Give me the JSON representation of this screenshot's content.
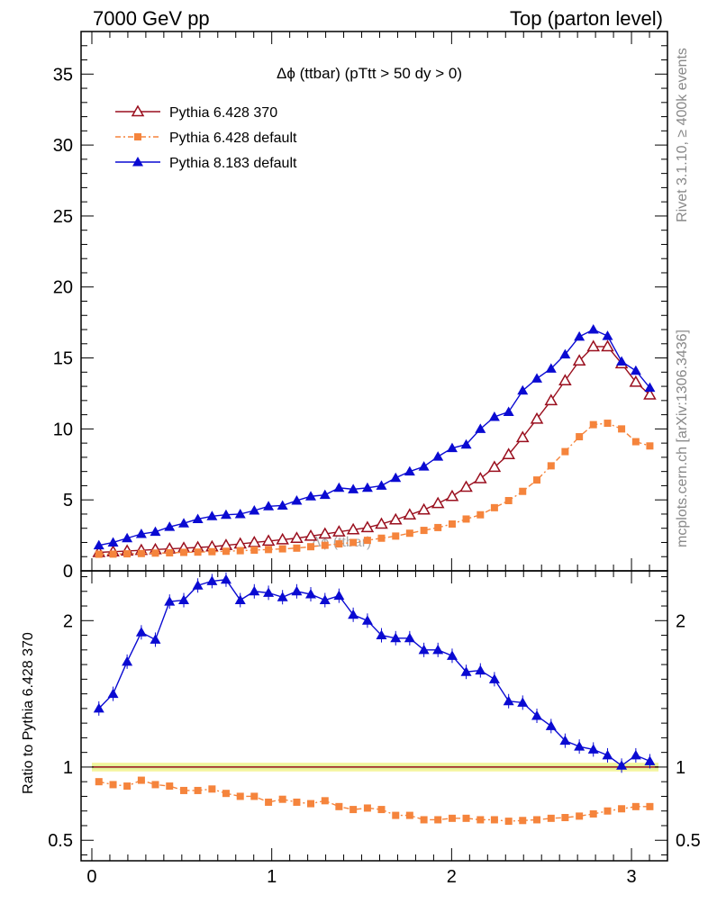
{
  "header": {
    "left": "7000 GeV pp",
    "right": "Top (parton level)"
  },
  "side_labels": {
    "rivet": "Rivet 3.1.10, ≥ 400k events",
    "mcplots": "mcplots.cern.ch [arXiv:1306.3436]"
  },
  "colors": {
    "pythia6_370": "#9a0f1e",
    "pythia6_default": "#f5843c",
    "pythia8_default": "#0a0ad2",
    "band_green": "#dff59a",
    "band_yellow": "#f5f5a0"
  },
  "chart_data": [
    {
      "type": "line",
      "title": "Δϕ (ttbar) (pTtt > 50 dy > 0)",
      "watermark": "Δϕ (ttbar)",
      "xlim": [
        -0.06,
        3.2
      ],
      "ylim": [
        0,
        38
      ],
      "yticks": [
        0,
        5,
        10,
        15,
        20,
        25,
        30,
        35
      ],
      "ytick_labels": [
        "0",
        "5",
        "10",
        "15",
        "20",
        "25",
        "30",
        "35"
      ],
      "legend_position": "top-left",
      "x": [
        0.039,
        0.118,
        0.196,
        0.275,
        0.353,
        0.432,
        0.511,
        0.589,
        0.668,
        0.746,
        0.825,
        0.903,
        0.982,
        1.06,
        1.139,
        1.217,
        1.296,
        1.374,
        1.453,
        1.532,
        1.61,
        1.689,
        1.767,
        1.846,
        1.924,
        2.003,
        2.081,
        2.16,
        2.238,
        2.317,
        2.395,
        2.474,
        2.553,
        2.631,
        2.71,
        2.788,
        2.867,
        2.945,
        3.024,
        3.102
      ],
      "series": [
        {
          "name": "Pythia 6.428 370",
          "marker": "open-triangle",
          "line": "solid",
          "values": [
            1.3,
            1.35,
            1.4,
            1.45,
            1.5,
            1.55,
            1.6,
            1.65,
            1.7,
            1.8,
            1.9,
            2.0,
            2.1,
            2.2,
            2.3,
            2.45,
            2.6,
            2.75,
            2.9,
            3.05,
            3.3,
            3.6,
            3.95,
            4.3,
            4.75,
            5.25,
            5.9,
            6.5,
            7.3,
            8.2,
            9.4,
            10.7,
            12.0,
            13.4,
            14.8,
            15.8,
            15.8,
            14.6,
            13.3,
            12.4
          ]
        },
        {
          "name": "Pythia 6.428 default",
          "marker": "filled-square",
          "line": "dash-dot",
          "values": [
            1.17,
            1.18,
            1.2,
            1.22,
            1.25,
            1.27,
            1.3,
            1.32,
            1.35,
            1.38,
            1.42,
            1.46,
            1.5,
            1.55,
            1.6,
            1.7,
            1.8,
            1.9,
            2.0,
            2.15,
            2.3,
            2.45,
            2.65,
            2.85,
            3.05,
            3.3,
            3.65,
            3.95,
            4.45,
            4.95,
            5.6,
            6.4,
            7.4,
            8.4,
            9.45,
            10.3,
            10.4,
            10.0,
            9.1,
            8.8
          ]
        },
        {
          "name": "Pythia 8.183 default",
          "marker": "filled-triangle",
          "line": "solid",
          "values": [
            1.8,
            2.0,
            2.3,
            2.6,
            2.75,
            3.1,
            3.35,
            3.65,
            3.85,
            3.95,
            4.0,
            4.25,
            4.55,
            4.6,
            4.95,
            5.25,
            5.35,
            5.85,
            5.75,
            5.85,
            6.0,
            6.55,
            7.0,
            7.35,
            8.05,
            8.65,
            8.9,
            10.0,
            10.85,
            11.2,
            12.7,
            13.55,
            14.25,
            15.25,
            16.5,
            17.0,
            16.55,
            14.75,
            14.1,
            12.9
          ]
        }
      ]
    },
    {
      "type": "line",
      "ylabel": "Ratio to Pythia 6.428 370",
      "xlim": [
        -0.06,
        3.2
      ],
      "ylim": [
        0.36,
        2.34
      ],
      "xticks": [
        0,
        1,
        2,
        3
      ],
      "xtick_labels": [
        "0",
        "1",
        "2",
        "3"
      ],
      "yticks": [
        0.5,
        1,
        2
      ],
      "ytick_labels": [
        "0.5",
        "1",
        "2"
      ],
      "x": [
        0.039,
        0.118,
        0.196,
        0.275,
        0.353,
        0.432,
        0.511,
        0.589,
        0.668,
        0.746,
        0.825,
        0.903,
        0.982,
        1.06,
        1.139,
        1.217,
        1.296,
        1.374,
        1.453,
        1.532,
        1.61,
        1.689,
        1.767,
        1.846,
        1.924,
        2.003,
        2.081,
        2.16,
        2.238,
        2.317,
        2.395,
        2.474,
        2.553,
        2.631,
        2.71,
        2.788,
        2.867,
        2.945,
        3.024,
        3.102
      ],
      "series": [
        {
          "name": "Pythia 6.428 default",
          "values": [
            0.9,
            0.88,
            0.87,
            0.91,
            0.88,
            0.87,
            0.84,
            0.84,
            0.85,
            0.82,
            0.8,
            0.8,
            0.76,
            0.78,
            0.76,
            0.75,
            0.77,
            0.73,
            0.71,
            0.72,
            0.71,
            0.67,
            0.67,
            0.64,
            0.64,
            0.65,
            0.65,
            0.64,
            0.64,
            0.63,
            0.635,
            0.64,
            0.65,
            0.655,
            0.665,
            0.68,
            0.7,
            0.715,
            0.73,
            0.73
          ]
        },
        {
          "name": "Pythia 8.183 default",
          "values": [
            1.4,
            1.5,
            1.72,
            1.92,
            1.87,
            2.13,
            2.14,
            2.24,
            2.27,
            2.28,
            2.14,
            2.2,
            2.19,
            2.16,
            2.2,
            2.18,
            2.14,
            2.17,
            2.04,
            2.0,
            1.9,
            1.88,
            1.88,
            1.8,
            1.8,
            1.76,
            1.65,
            1.66,
            1.6,
            1.45,
            1.44,
            1.35,
            1.28,
            1.18,
            1.14,
            1.12,
            1.08,
            1.01,
            1.08,
            1.04
          ]
        }
      ]
    }
  ]
}
